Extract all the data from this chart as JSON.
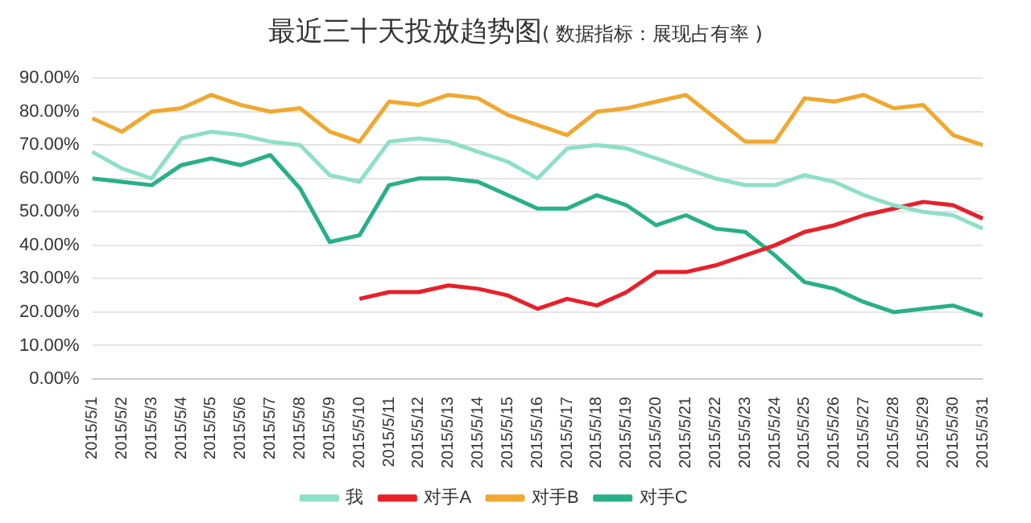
{
  "chart_data": {
    "type": "line",
    "title": "最近三十天投放趋势图",
    "subtitle": "( 数据指标：展现占有率 )",
    "categories": [
      "2015/5/1",
      "2015/5/2",
      "2015/5/3",
      "2015/5/4",
      "2015/5/5",
      "2015/5/6",
      "2015/5/7",
      "2015/5/8",
      "2015/5/9",
      "2015/5/10",
      "2015/5/11",
      "2015/5/12",
      "2015/5/13",
      "2015/5/14",
      "2015/5/15",
      "2015/5/16",
      "2015/5/17",
      "2015/5/18",
      "2015/5/19",
      "2015/5/20",
      "2015/5/21",
      "2015/5/22",
      "2015/5/23",
      "2015/5/24",
      "2015/5/25",
      "2015/5/26",
      "2015/5/27",
      "2015/5/28",
      "2015/5/29",
      "2015/5/30",
      "2015/5/31"
    ],
    "series": [
      {
        "name": "我",
        "color": "#8ee0c8",
        "values": [
          68,
          63,
          60,
          72,
          74,
          73,
          71,
          70,
          61,
          59,
          71,
          72,
          71,
          68,
          65,
          60,
          69,
          70,
          69,
          66,
          63,
          60,
          58,
          58,
          61,
          59,
          55,
          52,
          50,
          49,
          45
        ]
      },
      {
        "name": "对手A",
        "color": "#e8202a",
        "values": [
          null,
          null,
          null,
          null,
          null,
          null,
          null,
          null,
          null,
          24,
          26,
          26,
          28,
          27,
          25,
          21,
          24,
          22,
          26,
          32,
          32,
          34,
          37,
          40,
          44,
          46,
          49,
          51,
          53,
          52,
          48
        ]
      },
      {
        "name": "对手B",
        "color": "#f0a830",
        "values": [
          78,
          74,
          80,
          81,
          85,
          82,
          80,
          81,
          74,
          71,
          83,
          82,
          85,
          84,
          79,
          76,
          73,
          80,
          81,
          83,
          85,
          78,
          71,
          71,
          84,
          83,
          85,
          81,
          82,
          73,
          70
        ]
      },
      {
        "name": "对手C",
        "color": "#28b088",
        "values": [
          60,
          59,
          58,
          64,
          66,
          64,
          67,
          57,
          41,
          43,
          58,
          60,
          60,
          59,
          55,
          51,
          51,
          55,
          52,
          46,
          49,
          45,
          44,
          37,
          29,
          27,
          23,
          20,
          21,
          22,
          19
        ]
      }
    ],
    "ylim": [
      0,
      90
    ],
    "yticks": [
      {
        "value": 0,
        "label": "0.00%"
      },
      {
        "value": 10,
        "label": "10.00%"
      },
      {
        "value": 20,
        "label": "20.00%"
      },
      {
        "value": 30,
        "label": "30.00%"
      },
      {
        "value": 40,
        "label": "40.00%"
      },
      {
        "value": 50,
        "label": "50.00%"
      },
      {
        "value": 60,
        "label": "60.00%"
      },
      {
        "value": 70,
        "label": "70.00%"
      },
      {
        "value": 80,
        "label": "80.00%"
      },
      {
        "value": 90,
        "label": "90.00%"
      }
    ],
    "grid": "y",
    "legend": "bottom",
    "marker": "none",
    "line_style": "solid"
  }
}
